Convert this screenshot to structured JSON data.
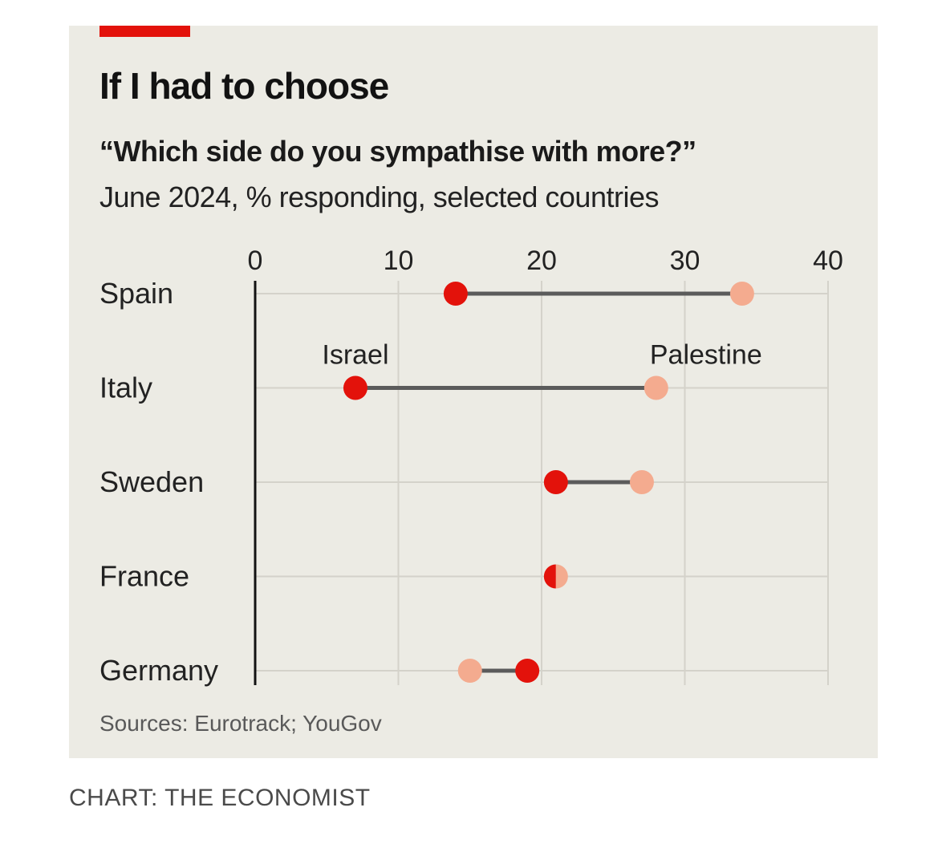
{
  "header": {
    "title": "If I had to choose",
    "subtitle": "“Which side do you sympathise with more?”",
    "subtitle2": "June 2024, % responding, selected countries"
  },
  "footer": {
    "source": "Sources: Eurotrack; YouGov",
    "credit": "CHART: THE ECONOMIST"
  },
  "colors": {
    "israel": "#e3120b",
    "palestine": "#f4ab8f",
    "connector": "#5b5b5b",
    "grid": "#d4d2ca",
    "accent": "#e3120b",
    "panel": "#ecebe4"
  },
  "chart_data": {
    "type": "dot-range",
    "xlim": [
      0,
      40
    ],
    "xticks": [
      0,
      10,
      20,
      30,
      40
    ],
    "grid": true,
    "categories": [
      "Spain",
      "Italy",
      "Sweden",
      "France",
      "Germany"
    ],
    "series": [
      {
        "name": "Israel",
        "values": [
          14,
          7,
          21,
          21,
          19
        ]
      },
      {
        "name": "Palestine",
        "values": [
          34,
          28,
          27,
          21,
          15
        ]
      }
    ],
    "series_label_row": "Italy"
  }
}
